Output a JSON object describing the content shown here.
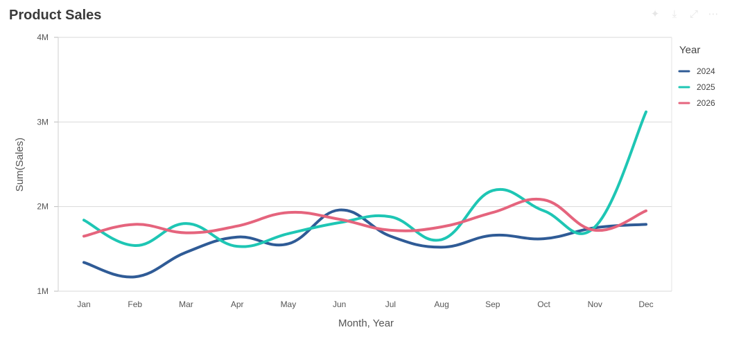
{
  "title": "Product Sales",
  "toolbar": {
    "icons": [
      "pin-icon",
      "download-icon",
      "expand-icon",
      "more-icon"
    ]
  },
  "chart_data": {
    "type": "line",
    "categories": [
      "Jan",
      "Feb",
      "Mar",
      "Apr",
      "May",
      "Jun",
      "Jul",
      "Aug",
      "Sep",
      "Oct",
      "Nov",
      "Dec"
    ],
    "xlabel": "Month,  Year",
    "ylabel": "Sum(Sales)",
    "ylim": [
      1000000,
      4000000
    ],
    "yticks": [
      {
        "value": 1000000,
        "label": "1M"
      },
      {
        "value": 2000000,
        "label": "2M"
      },
      {
        "value": 3000000,
        "label": "3M"
      },
      {
        "value": 4000000,
        "label": "4M"
      }
    ],
    "grid": true,
    "legend": {
      "title": "Year",
      "position": "right"
    },
    "series": [
      {
        "name": "2024",
        "color": "#2f5b96",
        "values": [
          1340000,
          1170000,
          1460000,
          1640000,
          1560000,
          1960000,
          1650000,
          1520000,
          1660000,
          1620000,
          1750000,
          1790000
        ]
      },
      {
        "name": "2025",
        "color": "#1ec6b4",
        "values": [
          1840000,
          1540000,
          1800000,
          1530000,
          1680000,
          1810000,
          1880000,
          1610000,
          2190000,
          1950000,
          1760000,
          3120000
        ]
      },
      {
        "name": "2026",
        "color": "#e5647d",
        "values": [
          1650000,
          1790000,
          1690000,
          1770000,
          1930000,
          1850000,
          1720000,
          1760000,
          1930000,
          2080000,
          1720000,
          1950000
        ]
      }
    ]
  }
}
